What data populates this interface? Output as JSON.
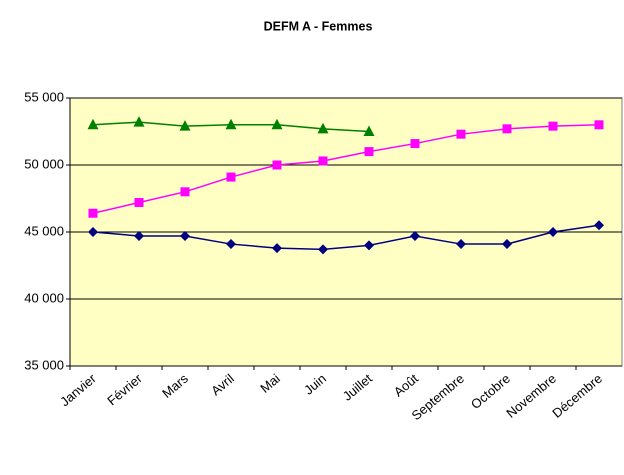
{
  "chart_data": {
    "type": "line",
    "title": "DEFM A - Femmes",
    "categories": [
      "Janvier",
      "Février",
      "Mars",
      "Avril",
      "Mai",
      "Juin",
      "Juillet",
      "Août",
      "Septembre",
      "Octobre",
      "Novembre",
      "Décembre"
    ],
    "series": [
      {
        "color": "#000080",
        "marker": "diamond",
        "values": [
          45000,
          44700,
          44700,
          44100,
          43800,
          43700,
          44000,
          44700,
          44100,
          44100,
          45000,
          45500
        ]
      },
      {
        "color": "#ff00ff",
        "marker": "square",
        "values": [
          46400,
          47200,
          48000,
          49100,
          50000,
          50300,
          51000,
          51600,
          52300,
          52700,
          52900,
          53000
        ]
      },
      {
        "color": "#008000",
        "marker": "triangle",
        "values": [
          53000,
          53200,
          52900,
          53000,
          53000,
          52700,
          52500,
          null,
          null,
          null,
          null,
          null
        ]
      }
    ],
    "ylim": [
      35000,
      55000
    ],
    "yticks": [
      {
        "value": 35000,
        "label": "35 000"
      },
      {
        "value": 40000,
        "label": "40 000"
      },
      {
        "value": 45000,
        "label": "45 000"
      },
      {
        "value": 50000,
        "label": "50 000"
      },
      {
        "value": 55000,
        "label": "55 000"
      }
    ],
    "grid": true,
    "background": "#ffffc4"
  }
}
